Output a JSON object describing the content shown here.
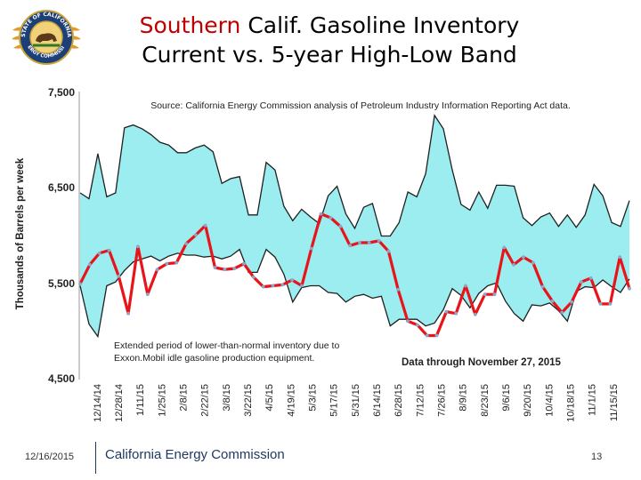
{
  "slide": {
    "title_accent": "Southern",
    "title_line1_rest": " Calif. Gasoline Inventory",
    "title_line2": "Current vs. 5-year High-Low Band",
    "source": "Source: California Energy Commission analysis of Petroleum Industry Information Reporting Act data.",
    "annotation_left": "Extended period of lower-than-normal inventory due to Exxon.Mobil idle gasoline production equipment.",
    "annotation_right": "Data through November 27, 2015",
    "footer_date": "12/16/2015",
    "footer_org": "California Energy Commission",
    "page_number": "13"
  },
  "logo": {
    "text_top": "STATE OF CALIFORNIA",
    "text_bottom": "ENERGY COMMISSION"
  },
  "colors": {
    "band_fill": "#9bedf0",
    "band_stroke": "#202020",
    "current_line": "#e8141a",
    "current_marker": "#8aa6c9",
    "accent_title": "#c00000",
    "footer": "#1f3a60"
  },
  "chart_data": {
    "type": "line",
    "title": "Southern Calif. Gasoline Inventory Current vs. 5-year High-Low Band",
    "ylabel": "Thousands of Barrels per week",
    "xlabel": "",
    "ylim": [
      4500,
      7500
    ],
    "yticks": [
      4500,
      5500,
      6500,
      7500
    ],
    "ytick_labels": [
      "4,500",
      "5,500",
      "6,500",
      "7,500"
    ],
    "x_tick_labels": [
      "12/14/14",
      "12/28/14",
      "1/11/15",
      "1/25/15",
      "2/8/15",
      "2/22/15",
      "3/8/15",
      "3/22/15",
      "4/5/15",
      "4/19/15",
      "5/3/15",
      "5/17/15",
      "5/31/15",
      "6/14/15",
      "6/28/15",
      "7/12/15",
      "7/26/15",
      "8/9/15",
      "8/23/15",
      "9/6/15",
      "9/20/15",
      "10/4/15",
      "10/18/15",
      "11/1/15",
      "11/15/15"
    ],
    "series": [
      {
        "name": "5-year High",
        "values": [
          6450,
          6390,
          6860,
          6410,
          6450,
          7130,
          7160,
          7120,
          7060,
          6980,
          6950,
          6870,
          6870,
          6920,
          6950,
          6880,
          6550,
          6600,
          6620,
          6220,
          6220,
          6770,
          6690,
          6310,
          6160,
          6280,
          6200,
          6130,
          6420,
          6520,
          6230,
          6080,
          6300,
          6340,
          6000,
          6000,
          6140,
          6460,
          6410,
          6650,
          7260,
          7120,
          6690,
          6330,
          6270,
          6460,
          6290,
          6530,
          6530,
          6520,
          6190,
          6110,
          6200,
          6240,
          6100,
          6220,
          6090,
          6220,
          6540,
          6420,
          6140,
          6100,
          6370
        ]
      },
      {
        "name": "5-year Low",
        "values": [
          5480,
          5080,
          4950,
          5480,
          5520,
          5640,
          5730,
          5760,
          5790,
          5740,
          5790,
          5820,
          5800,
          5800,
          5780,
          5790,
          5760,
          5790,
          5860,
          5620,
          5620,
          5860,
          5780,
          5600,
          5310,
          5460,
          5480,
          5480,
          5410,
          5400,
          5310,
          5370,
          5390,
          5350,
          5370,
          5060,
          5130,
          5130,
          5130,
          5060,
          5090,
          5230,
          5450,
          5380,
          5250,
          5400,
          5480,
          5510,
          5320,
          5190,
          5110,
          5280,
          5270,
          5300,
          5220,
          5110,
          5420,
          5470,
          5460,
          5540,
          5470,
          5410,
          5550
        ]
      },
      {
        "name": "2015 Current",
        "values": [
          5500,
          5700,
          5820,
          5850,
          5580,
          5190,
          5890,
          5390,
          5650,
          5710,
          5720,
          5920,
          6010,
          6110,
          5670,
          5650,
          5660,
          5710,
          5570,
          5470,
          5480,
          5490,
          5540,
          5480,
          5870,
          6230,
          6190,
          6100,
          5900,
          5930,
          5930,
          5950,
          5840,
          5440,
          5110,
          5070,
          4960,
          4960,
          5210,
          5190,
          5480,
          5180,
          5390,
          5390,
          5880,
          5700,
          5780,
          5720,
          5470,
          5320,
          5200,
          5310,
          5520,
          5560,
          5290,
          5290,
          5780,
          5450
        ]
      }
    ],
    "legend": "none",
    "grid": false
  }
}
